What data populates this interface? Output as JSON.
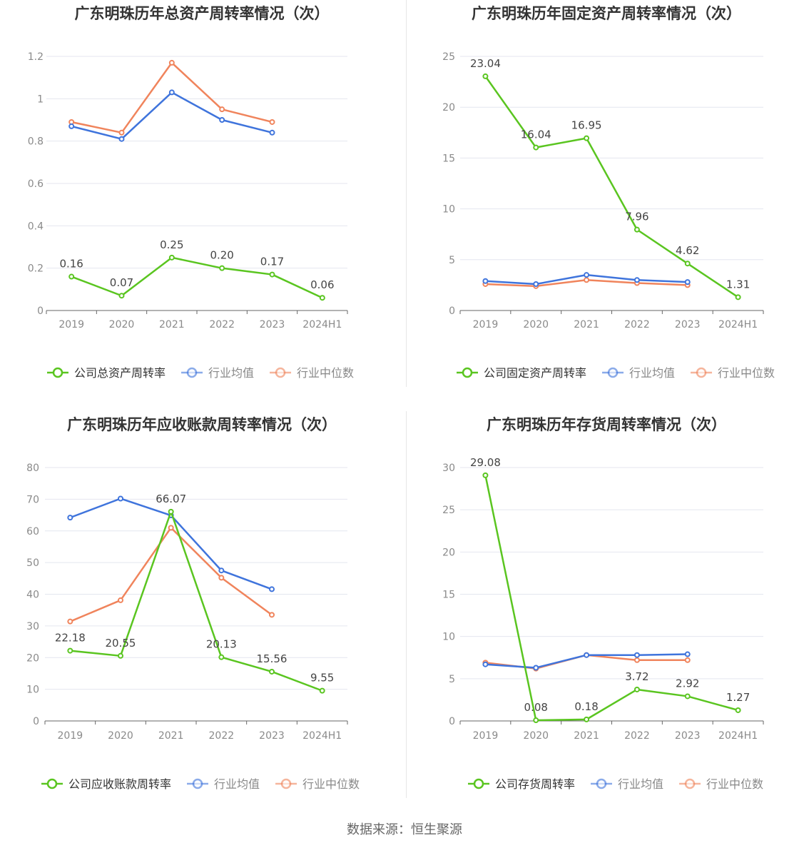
{
  "colors": {
    "company": "#5ac520",
    "avg": "#3f74dc",
    "median": "#f0845c",
    "grid": "#e4e6ef",
    "axis": "#666666",
    "tick": "#8a8a8a"
  },
  "footer": {
    "source": "数据来源：恒生聚源"
  },
  "chart_data": [
    {
      "type": "line",
      "title": "广东明珠历年总资产周转率情况（次）",
      "categories": [
        "2019",
        "2020",
        "2021",
        "2022",
        "2023",
        "2024H1"
      ],
      "ylim": [
        0,
        1.2
      ],
      "yticks": [
        "0",
        "0.2",
        "0.4",
        "0.6",
        "0.8",
        "1",
        "1.2"
      ],
      "ytick_values": [
        0,
        0.2,
        0.4,
        0.6,
        0.8,
        1,
        1.2
      ],
      "series": [
        {
          "name": "公司总资产周转率",
          "role": "company",
          "values": [
            0.16,
            0.07,
            0.25,
            0.2,
            0.17,
            0.06
          ],
          "labels": [
            "0.16",
            "0.07",
            "0.25",
            "0.20",
            "0.17",
            "0.06"
          ]
        },
        {
          "name": "行业均值",
          "role": "avg",
          "values": [
            0.87,
            0.81,
            1.03,
            0.9,
            0.84,
            null
          ]
        },
        {
          "name": "行业中位数",
          "role": "median",
          "values": [
            0.89,
            0.84,
            1.17,
            0.95,
            0.89,
            null
          ]
        }
      ],
      "legend": "bottom",
      "grid": true
    },
    {
      "type": "line",
      "title": "广东明珠历年固定资产周转率情况（次）",
      "categories": [
        "2019",
        "2020",
        "2021",
        "2022",
        "2023",
        "2024H1"
      ],
      "ylim": [
        0,
        25
      ],
      "yticks": [
        "0",
        "5",
        "10",
        "15",
        "20",
        "25"
      ],
      "ytick_values": [
        0,
        5,
        10,
        15,
        20,
        25
      ],
      "series": [
        {
          "name": "公司固定资产周转率",
          "role": "company",
          "values": [
            23.04,
            16.04,
            16.95,
            7.96,
            4.62,
            1.31
          ],
          "labels": [
            "23.04",
            "16.04",
            "16.95",
            "7.96",
            "4.62",
            "1.31"
          ]
        },
        {
          "name": "行业均值",
          "role": "avg",
          "values": [
            2.9,
            2.6,
            3.5,
            3.0,
            2.8,
            null
          ]
        },
        {
          "name": "行业中位数",
          "role": "median",
          "values": [
            2.6,
            2.4,
            3.0,
            2.7,
            2.5,
            null
          ]
        }
      ],
      "legend": "bottom",
      "grid": true
    },
    {
      "type": "line",
      "title": "广东明珠历年应收账款周转率情况（次）",
      "categories": [
        "2019",
        "2020",
        "2021",
        "2022",
        "2023",
        "2024H1"
      ],
      "ylim": [
        0,
        80
      ],
      "yticks": [
        "0",
        "10",
        "20",
        "30",
        "40",
        "50",
        "60",
        "70",
        "80"
      ],
      "ytick_values": [
        0,
        10,
        20,
        30,
        40,
        50,
        60,
        70,
        80
      ],
      "series": [
        {
          "name": "公司应收账款周转率",
          "role": "company",
          "values": [
            22.18,
            20.55,
            66.07,
            20.13,
            15.56,
            9.55
          ],
          "labels": [
            "22.18",
            "20.55",
            "66.07",
            "20.13",
            "15.56",
            "9.55"
          ]
        },
        {
          "name": "行业均值",
          "role": "avg",
          "values": [
            64.2,
            70.2,
            64.9,
            47.5,
            41.6,
            null
          ]
        },
        {
          "name": "行业中位数",
          "role": "median",
          "values": [
            31.4,
            38.1,
            61.0,
            45.2,
            33.5,
            null
          ]
        }
      ],
      "legend": "bottom",
      "grid": true
    },
    {
      "type": "line",
      "title": "广东明珠历年存货周转率情况（次）",
      "categories": [
        "2019",
        "2020",
        "2021",
        "2022",
        "2023",
        "2024H1"
      ],
      "ylim": [
        0,
        30
      ],
      "yticks": [
        "0",
        "5",
        "10",
        "15",
        "20",
        "25",
        "30"
      ],
      "ytick_values": [
        0,
        5,
        10,
        15,
        20,
        25,
        30
      ],
      "series": [
        {
          "name": "公司存货周转率",
          "role": "company",
          "values": [
            29.08,
            0.08,
            0.18,
            3.72,
            2.92,
            1.27
          ],
          "labels": [
            "29.08",
            "0.08",
            "0.18",
            "3.72",
            "2.92",
            "1.27"
          ]
        },
        {
          "name": "行业均值",
          "role": "avg",
          "values": [
            6.7,
            6.3,
            7.8,
            7.8,
            7.9,
            null
          ]
        },
        {
          "name": "行业中位数",
          "role": "median",
          "values": [
            6.9,
            6.2,
            7.8,
            7.2,
            7.2,
            null
          ]
        }
      ],
      "legend": "bottom",
      "grid": true
    }
  ]
}
